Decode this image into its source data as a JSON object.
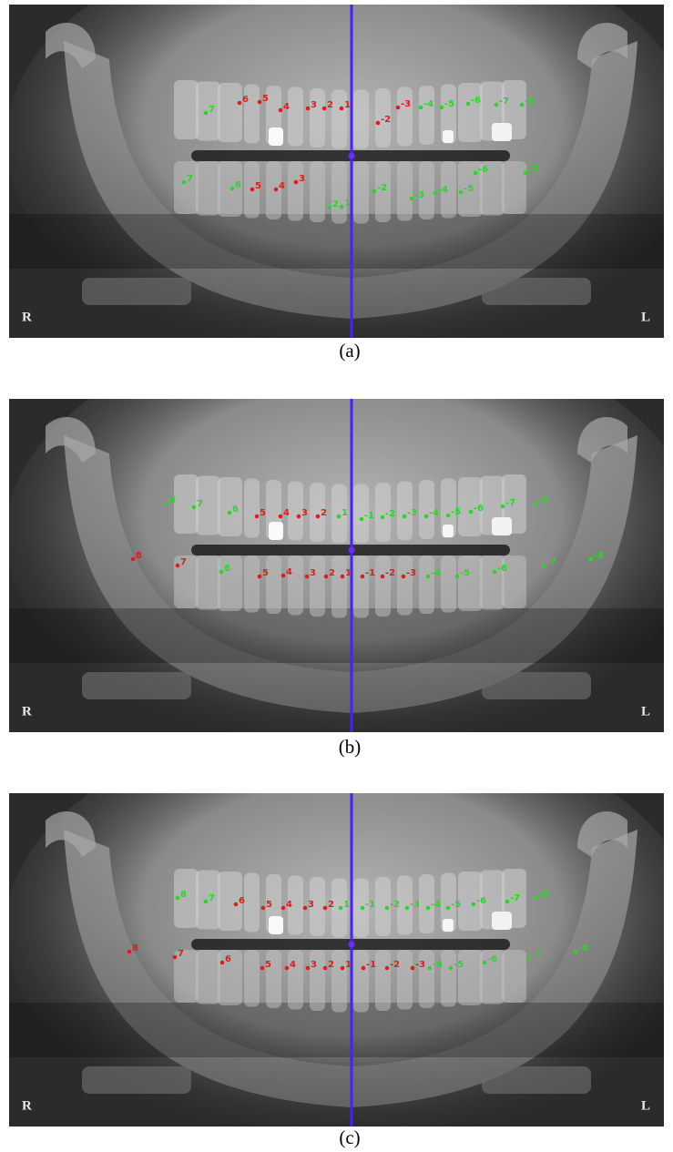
{
  "panels": [
    {
      "caption": "(a)",
      "left_side": "R",
      "right_side": "L",
      "points": [
        {
          "label": "7",
          "color": "#2bd52b"
        },
        {
          "label": "6",
          "color": "#e21b1b"
        },
        {
          "label": "5",
          "color": "#e21b1b"
        },
        {
          "label": "4",
          "color": "#e21b1b"
        },
        {
          "label": "3",
          "color": "#e21b1b"
        },
        {
          "label": "2",
          "color": "#e21b1b"
        },
        {
          "label": "1",
          "color": "#e21b1b"
        },
        {
          "label": "-2",
          "color": "#e21b1b"
        },
        {
          "label": "-3",
          "color": "#e21b1b"
        },
        {
          "label": "-4",
          "color": "#2bd52b"
        },
        {
          "label": "-5",
          "color": "#2bd52b"
        },
        {
          "label": "-6",
          "color": "#2bd52b"
        },
        {
          "label": "-7",
          "color": "#2bd52b"
        },
        {
          "label": "-8",
          "color": "#2bd52b"
        },
        {
          "label": "7",
          "color": "#2bd52b"
        },
        {
          "label": "6",
          "color": "#2bd52b"
        },
        {
          "label": "5",
          "color": "#e21b1b"
        },
        {
          "label": "4",
          "color": "#e21b1b"
        },
        {
          "label": "3",
          "color": "#e21b1b"
        },
        {
          "label": "2",
          "color": "#2bd52b"
        },
        {
          "label": "1",
          "color": "#2bd52b"
        },
        {
          "label": "-2",
          "color": "#2bd52b"
        },
        {
          "label": "-3",
          "color": "#2bd52b"
        },
        {
          "label": "-4",
          "color": "#2bd52b"
        },
        {
          "label": "-5",
          "color": "#2bd52b"
        },
        {
          "label": "-6",
          "color": "#2bd52b"
        },
        {
          "label": "-7",
          "color": "#2bd52b"
        }
      ]
    },
    {
      "caption": "(b)",
      "left_side": "R",
      "right_side": "L",
      "points": [
        {
          "label": "8",
          "color": "#2bd52b"
        },
        {
          "label": "7",
          "color": "#2bd52b"
        },
        {
          "label": "6",
          "color": "#2bd52b"
        },
        {
          "label": "5",
          "color": "#e21b1b"
        },
        {
          "label": "4",
          "color": "#e21b1b"
        },
        {
          "label": "3",
          "color": "#e21b1b"
        },
        {
          "label": "2",
          "color": "#e21b1b"
        },
        {
          "label": "1",
          "color": "#2bd52b"
        },
        {
          "label": "-1",
          "color": "#2bd52b"
        },
        {
          "label": "-2",
          "color": "#2bd52b"
        },
        {
          "label": "-3",
          "color": "#2bd52b"
        },
        {
          "label": "-4",
          "color": "#2bd52b"
        },
        {
          "label": "-5",
          "color": "#2bd52b"
        },
        {
          "label": "-6",
          "color": "#2bd52b"
        },
        {
          "label": "-7",
          "color": "#2bd52b"
        },
        {
          "label": "-8",
          "color": "#2bd52b"
        },
        {
          "label": "8",
          "color": "#e21b1b"
        },
        {
          "label": "7",
          "color": "#e21b1b"
        },
        {
          "label": "6",
          "color": "#2bd52b"
        },
        {
          "label": "5",
          "color": "#e21b1b"
        },
        {
          "label": "4",
          "color": "#e21b1b"
        },
        {
          "label": "3",
          "color": "#e21b1b"
        },
        {
          "label": "2",
          "color": "#e21b1b"
        },
        {
          "label": "1",
          "color": "#e21b1b"
        },
        {
          "label": "-1",
          "color": "#e21b1b"
        },
        {
          "label": "-2",
          "color": "#e21b1b"
        },
        {
          "label": "-3",
          "color": "#e21b1b"
        },
        {
          "label": "-4",
          "color": "#2bd52b"
        },
        {
          "label": "-5",
          "color": "#2bd52b"
        },
        {
          "label": "-6",
          "color": "#2bd52b"
        },
        {
          "label": "-7",
          "color": "#2bd52b"
        },
        {
          "label": "-8",
          "color": "#2bd52b"
        }
      ]
    },
    {
      "caption": "(c)",
      "left_side": "R",
      "right_side": "L",
      "points": [
        {
          "label": "8",
          "color": "#2bd52b"
        },
        {
          "label": "7",
          "color": "#2bd52b"
        },
        {
          "label": "6",
          "color": "#e21b1b"
        },
        {
          "label": "5",
          "color": "#e21b1b"
        },
        {
          "label": "4",
          "color": "#e21b1b"
        },
        {
          "label": "3",
          "color": "#e21b1b"
        },
        {
          "label": "2",
          "color": "#e21b1b"
        },
        {
          "label": "1",
          "color": "#2bd52b"
        },
        {
          "label": "-1",
          "color": "#2bd52b"
        },
        {
          "label": "-2",
          "color": "#2bd52b"
        },
        {
          "label": "-3",
          "color": "#2bd52b"
        },
        {
          "label": "-4",
          "color": "#2bd52b"
        },
        {
          "label": "-5",
          "color": "#2bd52b"
        },
        {
          "label": "-6",
          "color": "#2bd52b"
        },
        {
          "label": "-7",
          "color": "#2bd52b"
        },
        {
          "label": "-8",
          "color": "#2bd52b"
        },
        {
          "label": "8",
          "color": "#e21b1b"
        },
        {
          "label": "7",
          "color": "#e21b1b"
        },
        {
          "label": "6",
          "color": "#e21b1b"
        },
        {
          "label": "5",
          "color": "#e21b1b"
        },
        {
          "label": "4",
          "color": "#e21b1b"
        },
        {
          "label": "3",
          "color": "#e21b1b"
        },
        {
          "label": "2",
          "color": "#e21b1b"
        },
        {
          "label": "1",
          "color": "#e21b1b"
        },
        {
          "label": "-1",
          "color": "#e21b1b"
        },
        {
          "label": "-2",
          "color": "#e21b1b"
        },
        {
          "label": "-3",
          "color": "#e21b1b"
        },
        {
          "label": "-4",
          "color": "#2bd52b"
        },
        {
          "label": "-5",
          "color": "#2bd52b"
        },
        {
          "label": "-6",
          "color": "#2bd52b"
        },
        {
          "label": "-7",
          "color": "#2bd52b"
        },
        {
          "label": "-8",
          "color": "#2bd52b"
        }
      ]
    }
  ]
}
